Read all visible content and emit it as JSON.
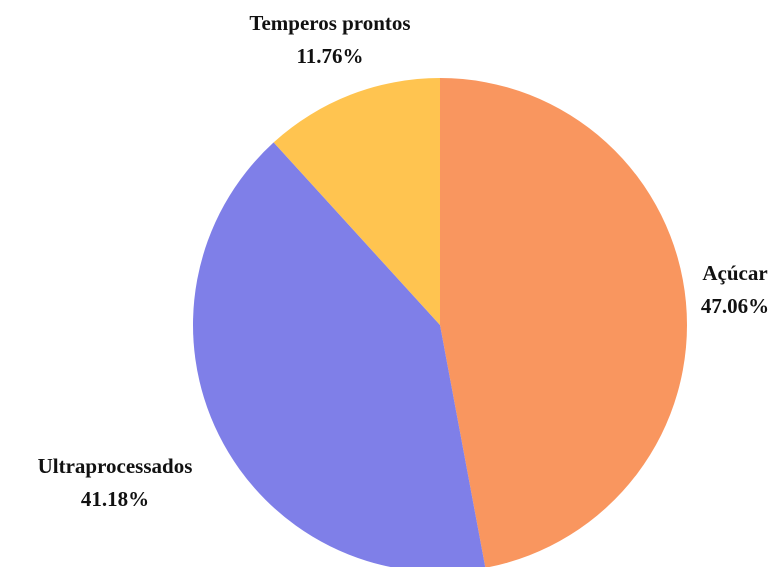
{
  "chart_data": {
    "type": "pie",
    "categories": [
      "Açúcar",
      "Ultraprocessados",
      "Temperos prontos"
    ],
    "values": [
      47.06,
      41.18,
      11.76
    ],
    "value_labels": [
      "47.06%",
      "41.18%",
      "11.76%"
    ],
    "colors": [
      "#f9965f",
      "#7f7fe8",
      "#ffc450"
    ]
  }
}
